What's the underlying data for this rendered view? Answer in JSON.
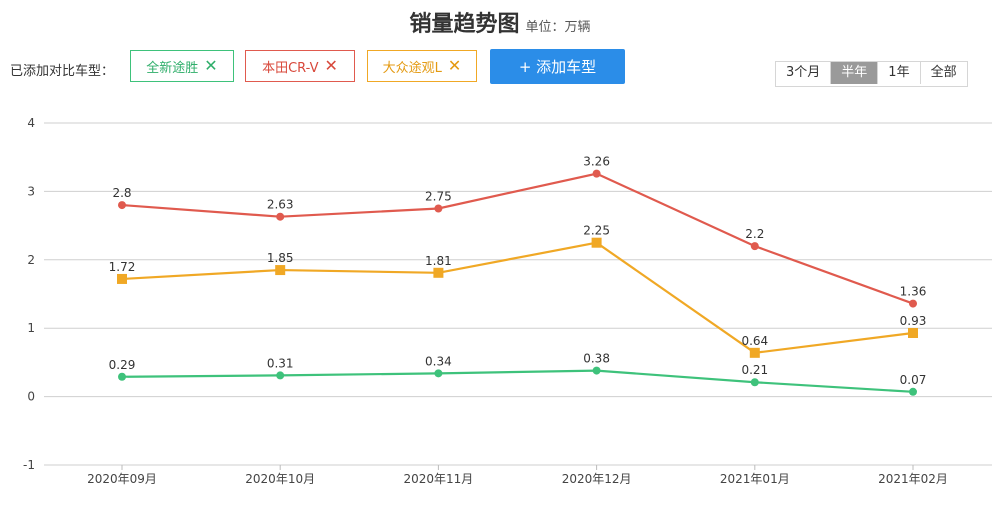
{
  "header": {
    "title": "销量趋势图",
    "unit": "单位：万辆"
  },
  "compare_bar": {
    "label": "已添加对比车型：",
    "chips": [
      {
        "label": "全新途胜",
        "remove_icon": "close-icon",
        "color": "#3ec27b"
      },
      {
        "label": "本田CR-V",
        "remove_icon": "close-icon",
        "color": "#e05a4e"
      },
      {
        "label": "大众途观L",
        "remove_icon": "close-icon",
        "color": "#f0a825"
      }
    ],
    "add_button": "+ 添加车型"
  },
  "range_tabs": {
    "items": [
      "3个月",
      "半年",
      "1年",
      "全部"
    ],
    "selected": "半年"
  },
  "chart_data": {
    "type": "line",
    "categories": [
      "2020年09月",
      "2020年10月",
      "2020年11月",
      "2020年12月",
      "2021年01月",
      "2021年02月"
    ],
    "ylim": [
      -1,
      4
    ],
    "yticks": [
      -1,
      0,
      1,
      2,
      3,
      4
    ],
    "grid": true,
    "series": [
      {
        "name": "本田CR-V",
        "color": "#e05a4e",
        "marker": "circle",
        "values": [
          2.8,
          2.63,
          2.75,
          3.26,
          2.2,
          1.36
        ]
      },
      {
        "name": "大众途观L",
        "color": "#f0a825",
        "marker": "square",
        "values": [
          1.72,
          1.85,
          1.81,
          2.25,
          0.64,
          0.93
        ]
      },
      {
        "name": "全新途胜",
        "color": "#3ec27b",
        "marker": "circle",
        "values": [
          0.29,
          0.31,
          0.34,
          0.38,
          0.21,
          0.07
        ]
      }
    ]
  }
}
